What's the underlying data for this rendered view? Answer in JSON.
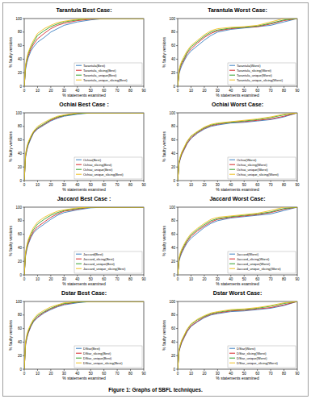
{
  "caption": "Figure 1: Graphs of SBFL techniques.",
  "chart_data": [
    {
      "type": "line",
      "title": "Tarantula Best Case:",
      "x_label": "% statements examined",
      "y_label": "% faulty versions",
      "x": [
        0,
        1,
        2,
        3,
        5,
        7,
        10,
        15,
        20,
        25,
        30,
        40,
        50,
        60,
        70,
        80,
        90
      ],
      "xlim": [
        0,
        90
      ],
      "xticks": [
        0,
        10,
        20,
        30,
        40,
        50,
        60,
        70,
        80,
        90
      ],
      "ylim": [
        0,
        100
      ],
      "yticks": [
        0,
        20,
        40,
        60,
        80,
        100
      ],
      "legend": "lower right",
      "series": [
        {
          "name": "Tarantula(Best)",
          "color": "#3a7fc1",
          "values": [
            0,
            25,
            35,
            42,
            52,
            58,
            65,
            72,
            80,
            85,
            90,
            95,
            98,
            100,
            100,
            100,
            100
          ]
        },
        {
          "name": "Tarantula_slicing(Best)",
          "color": "#d62728",
          "values": [
            0,
            28,
            38,
            45,
            55,
            62,
            70,
            78,
            85,
            90,
            93,
            97,
            99,
            100,
            100,
            100,
            100
          ]
        },
        {
          "name": "Tarantula_unique(Best)",
          "color": "#33a02c",
          "values": [
            0,
            30,
            40,
            48,
            58,
            65,
            75,
            82,
            88,
            92,
            95,
            98,
            100,
            100,
            100,
            100,
            100
          ]
        },
        {
          "name": "Tarantula_unique_slicing(Best)",
          "color": "#f0c020",
          "values": [
            0,
            32,
            42,
            50,
            60,
            68,
            78,
            85,
            90,
            94,
            96,
            99,
            100,
            100,
            100,
            100,
            100
          ]
        }
      ]
    },
    {
      "type": "line",
      "title": "Tarantula Worst Case:",
      "x_label": "% statements examined",
      "y_label": "% faulty versions",
      "x": [
        0,
        1,
        2,
        3,
        5,
        7,
        10,
        15,
        20,
        25,
        30,
        40,
        50,
        60,
        70,
        80,
        90
      ],
      "xlim": [
        0,
        90
      ],
      "xticks": [
        0,
        10,
        20,
        30,
        40,
        50,
        60,
        70,
        80,
        90
      ],
      "ylim": [
        0,
        100
      ],
      "yticks": [
        0,
        20,
        40,
        60,
        80,
        100
      ],
      "legend": "lower right",
      "series": [
        {
          "name": "Tarantula(Worst)",
          "color": "#3a7fc1",
          "values": [
            0,
            18,
            25,
            30,
            38,
            45,
            52,
            60,
            68,
            75,
            80,
            84,
            86,
            88,
            90,
            95,
            100
          ]
        },
        {
          "name": "Tarantula_slicing(Worst)",
          "color": "#d62728",
          "values": [
            0,
            20,
            28,
            33,
            40,
            48,
            55,
            64,
            72,
            78,
            82,
            85,
            87,
            88,
            92,
            97,
            100
          ]
        },
        {
          "name": "Tarantula_unique(Worst)",
          "color": "#33a02c",
          "values": [
            0,
            22,
            30,
            35,
            42,
            50,
            58,
            66,
            74,
            80,
            83,
            86,
            87,
            89,
            93,
            98,
            100
          ]
        },
        {
          "name": "Tarantula_unique_slicing(Worst)",
          "color": "#f0c020",
          "values": [
            0,
            24,
            32,
            37,
            45,
            52,
            60,
            68,
            76,
            82,
            85,
            87,
            88,
            90,
            95,
            100,
            100
          ]
        }
      ]
    },
    {
      "type": "line",
      "title": "Ochiai Best Case :",
      "x_label": "% statements examined",
      "y_label": "% faulty versions",
      "x": [
        0,
        1,
        2,
        3,
        5,
        7,
        10,
        15,
        20,
        25,
        30,
        40,
        50,
        60,
        70,
        80,
        90
      ],
      "xlim": [
        0,
        90
      ],
      "xticks": [
        0,
        10,
        20,
        30,
        40,
        50,
        60,
        70,
        80,
        90
      ],
      "ylim": [
        0,
        100
      ],
      "yticks": [
        0,
        20,
        40,
        60,
        80,
        100
      ],
      "legend": "lower right",
      "series": [
        {
          "name": "Ochiai(Best)",
          "color": "#3a7fc1",
          "values": [
            0,
            35,
            45,
            52,
            62,
            70,
            76,
            82,
            88,
            92,
            95,
            98,
            100,
            100,
            100,
            100,
            100
          ]
        },
        {
          "name": "Ochiai_slicing(Best)",
          "color": "#d62728",
          "values": [
            0,
            36,
            46,
            54,
            63,
            71,
            77,
            83,
            89,
            93,
            96,
            99,
            100,
            100,
            100,
            100,
            100
          ]
        },
        {
          "name": "Ochiai_unique(Best)",
          "color": "#33a02c",
          "values": [
            0,
            38,
            48,
            55,
            64,
            72,
            78,
            84,
            90,
            94,
            96,
            99,
            100,
            100,
            100,
            100,
            100
          ]
        },
        {
          "name": "Ochiai_unique_slicing(Best)",
          "color": "#f0c020",
          "values": [
            0,
            40,
            50,
            57,
            66,
            73,
            80,
            86,
            91,
            95,
            97,
            100,
            100,
            100,
            100,
            100,
            100
          ]
        }
      ]
    },
    {
      "type": "line",
      "title": "Ochiai Worst Case:",
      "x_label": "% statements examined",
      "y_label": "% faulty versions",
      "x": [
        0,
        1,
        2,
        3,
        5,
        7,
        10,
        15,
        20,
        25,
        30,
        40,
        50,
        60,
        70,
        80,
        90
      ],
      "xlim": [
        0,
        90
      ],
      "xticks": [
        0,
        10,
        20,
        30,
        40,
        50,
        60,
        70,
        80,
        90
      ],
      "ylim": [
        0,
        100
      ],
      "yticks": [
        0,
        20,
        40,
        60,
        80,
        100
      ],
      "legend": "lower right",
      "series": [
        {
          "name": "Ochiai(Worst)",
          "color": "#3a7fc1",
          "values": [
            0,
            25,
            32,
            38,
            46,
            54,
            62,
            70,
            76,
            80,
            82,
            85,
            86,
            88,
            90,
            94,
            100
          ]
        },
        {
          "name": "Ochiai_slicing(Worst)",
          "color": "#d62728",
          "values": [
            0,
            26,
            33,
            39,
            47,
            55,
            63,
            71,
            77,
            81,
            83,
            86,
            87,
            89,
            91,
            95,
            100
          ]
        },
        {
          "name": "Ochiai_unique(Worst)",
          "color": "#33a02c",
          "values": [
            0,
            27,
            35,
            41,
            49,
            57,
            65,
            72,
            78,
            82,
            84,
            86,
            88,
            90,
            93,
            97,
            100
          ]
        },
        {
          "name": "Ochiai_unique_slicing(Worst)",
          "color": "#f0c020",
          "values": [
            0,
            28,
            36,
            42,
            50,
            58,
            66,
            73,
            79,
            83,
            85,
            87,
            89,
            91,
            94,
            98,
            100
          ]
        }
      ]
    },
    {
      "type": "line",
      "title": "Jaccard Best Case :",
      "x_label": "% statements examined",
      "y_label": "% faulty versions",
      "x": [
        0,
        1,
        2,
        3,
        5,
        7,
        10,
        15,
        20,
        25,
        30,
        40,
        50,
        60,
        70,
        80,
        90
      ],
      "xlim": [
        0,
        90
      ],
      "xticks": [
        0,
        10,
        20,
        30,
        40,
        50,
        60,
        70,
        80,
        90
      ],
      "ylim": [
        0,
        100
      ],
      "yticks": [
        0,
        20,
        40,
        60,
        80,
        100
      ],
      "legend": "lower right",
      "series": [
        {
          "name": "Jaccard(Best)",
          "color": "#3a7fc1",
          "values": [
            0,
            28,
            38,
            45,
            55,
            62,
            68,
            75,
            82,
            88,
            92,
            96,
            99,
            100,
            100,
            100,
            100
          ]
        },
        {
          "name": "Jaccard_slicing(Best)",
          "color": "#d62728",
          "values": [
            0,
            30,
            40,
            47,
            57,
            64,
            71,
            78,
            85,
            90,
            94,
            97,
            100,
            100,
            100,
            100,
            100
          ]
        },
        {
          "name": "Jaccard_unique(Best)",
          "color": "#33a02c",
          "values": [
            0,
            32,
            42,
            50,
            60,
            67,
            75,
            82,
            88,
            92,
            95,
            98,
            100,
            100,
            100,
            100,
            100
          ]
        },
        {
          "name": "Jaccard_unique_slicing(Best)",
          "color": "#f0c020",
          "values": [
            0,
            34,
            44,
            52,
            62,
            70,
            78,
            85,
            90,
            94,
            96,
            99,
            100,
            100,
            100,
            100,
            100
          ]
        }
      ]
    },
    {
      "type": "line",
      "title": "Jaccard Worst Case:",
      "x_label": "% statements examined",
      "y_label": "% faulty versions",
      "x": [
        0,
        1,
        2,
        3,
        5,
        7,
        10,
        15,
        20,
        25,
        30,
        40,
        50,
        60,
        70,
        80,
        90
      ],
      "xlim": [
        0,
        90
      ],
      "xticks": [
        0,
        10,
        20,
        30,
        40,
        50,
        60,
        70,
        80,
        90
      ],
      "ylim": [
        0,
        100
      ],
      "yticks": [
        0,
        20,
        40,
        60,
        80,
        100
      ],
      "legend": "lower right",
      "series": [
        {
          "name": "Jaccard(Worst)",
          "color": "#3a7fc1",
          "values": [
            0,
            20,
            27,
            32,
            40,
            47,
            54,
            62,
            70,
            76,
            80,
            84,
            86,
            88,
            90,
            95,
            100
          ]
        },
        {
          "name": "Jaccard_slicing(Worst)",
          "color": "#d62728",
          "values": [
            0,
            22,
            29,
            34,
            42,
            49,
            57,
            65,
            72,
            78,
            82,
            85,
            87,
            89,
            92,
            97,
            100
          ]
        },
        {
          "name": "Jaccard_unique(Worst)",
          "color": "#33a02c",
          "values": [
            0,
            23,
            31,
            36,
            44,
            51,
            59,
            67,
            74,
            80,
            83,
            86,
            88,
            90,
            93,
            98,
            100
          ]
        },
        {
          "name": "Jaccard_unique_slicing(Worst)",
          "color": "#f0c020",
          "values": [
            0,
            25,
            33,
            38,
            46,
            53,
            61,
            69,
            76,
            82,
            85,
            87,
            89,
            91,
            95,
            100,
            100
          ]
        }
      ]
    },
    {
      "type": "line",
      "title": "Dstar Best Case:",
      "x_label": "% statements examined",
      "y_label": "% faulty versions",
      "x": [
        0,
        1,
        2,
        3,
        5,
        7,
        10,
        15,
        20,
        25,
        30,
        40,
        50,
        60,
        70,
        80,
        90
      ],
      "xlim": [
        0,
        90
      ],
      "xticks": [
        0,
        10,
        20,
        30,
        40,
        50,
        60,
        70,
        80,
        90
      ],
      "ylim": [
        0,
        100
      ],
      "yticks": [
        0,
        20,
        40,
        60,
        80,
        100
      ],
      "legend": "lower right",
      "series": [
        {
          "name": "DStar(Best)",
          "color": "#3a7fc1",
          "values": [
            0,
            36,
            46,
            53,
            63,
            70,
            76,
            83,
            88,
            92,
            95,
            98,
            100,
            100,
            100,
            100,
            100
          ]
        },
        {
          "name": "DStar_slicing(Best)",
          "color": "#d62728",
          "values": [
            0,
            37,
            47,
            54,
            64,
            71,
            77,
            84,
            89,
            93,
            96,
            99,
            100,
            100,
            100,
            100,
            100
          ]
        },
        {
          "name": "DStar_unique(Best)",
          "color": "#33a02c",
          "values": [
            0,
            39,
            49,
            56,
            65,
            72,
            79,
            85,
            90,
            94,
            97,
            99,
            100,
            100,
            100,
            100,
            100
          ]
        },
        {
          "name": "DStar_unique_slicing(Best)",
          "color": "#f0c020",
          "values": [
            0,
            41,
            51,
            58,
            67,
            74,
            81,
            87,
            92,
            95,
            98,
            100,
            100,
            100,
            100,
            100,
            100
          ]
        }
      ]
    },
    {
      "type": "line",
      "title": "Dstar Worst Case:",
      "x_label": "% statements examined",
      "y_label": "% faulty versions",
      "x": [
        0,
        1,
        2,
        3,
        5,
        7,
        10,
        15,
        20,
        25,
        30,
        40,
        50,
        60,
        70,
        80,
        90
      ],
      "xlim": [
        0,
        90
      ],
      "xticks": [
        0,
        10,
        20,
        30,
        40,
        50,
        60,
        70,
        80,
        90
      ],
      "ylim": [
        0,
        100
      ],
      "yticks": [
        0,
        20,
        40,
        60,
        80,
        100
      ],
      "legend": "lower right",
      "series": [
        {
          "name": "DStar(Worst)",
          "color": "#3a7fc1",
          "values": [
            0,
            26,
            33,
            39,
            47,
            55,
            63,
            70,
            76,
            80,
            82,
            85,
            86,
            88,
            90,
            94,
            100
          ]
        },
        {
          "name": "DStar_slicing(Worst)",
          "color": "#d62728",
          "values": [
            0,
            27,
            34,
            40,
            48,
            56,
            64,
            71,
            77,
            81,
            83,
            86,
            87,
            89,
            91,
            95,
            100
          ]
        },
        {
          "name": "DStar_unique(Worst)",
          "color": "#33a02c",
          "values": [
            0,
            28,
            36,
            42,
            50,
            58,
            66,
            73,
            78,
            82,
            84,
            87,
            88,
            90,
            93,
            97,
            100
          ]
        },
        {
          "name": "DStar_unique_slicing(Worst)",
          "color": "#f0c020",
          "values": [
            0,
            29,
            37,
            43,
            51,
            59,
            67,
            74,
            79,
            83,
            85,
            88,
            89,
            91,
            94,
            98,
            100
          ]
        }
      ]
    }
  ]
}
